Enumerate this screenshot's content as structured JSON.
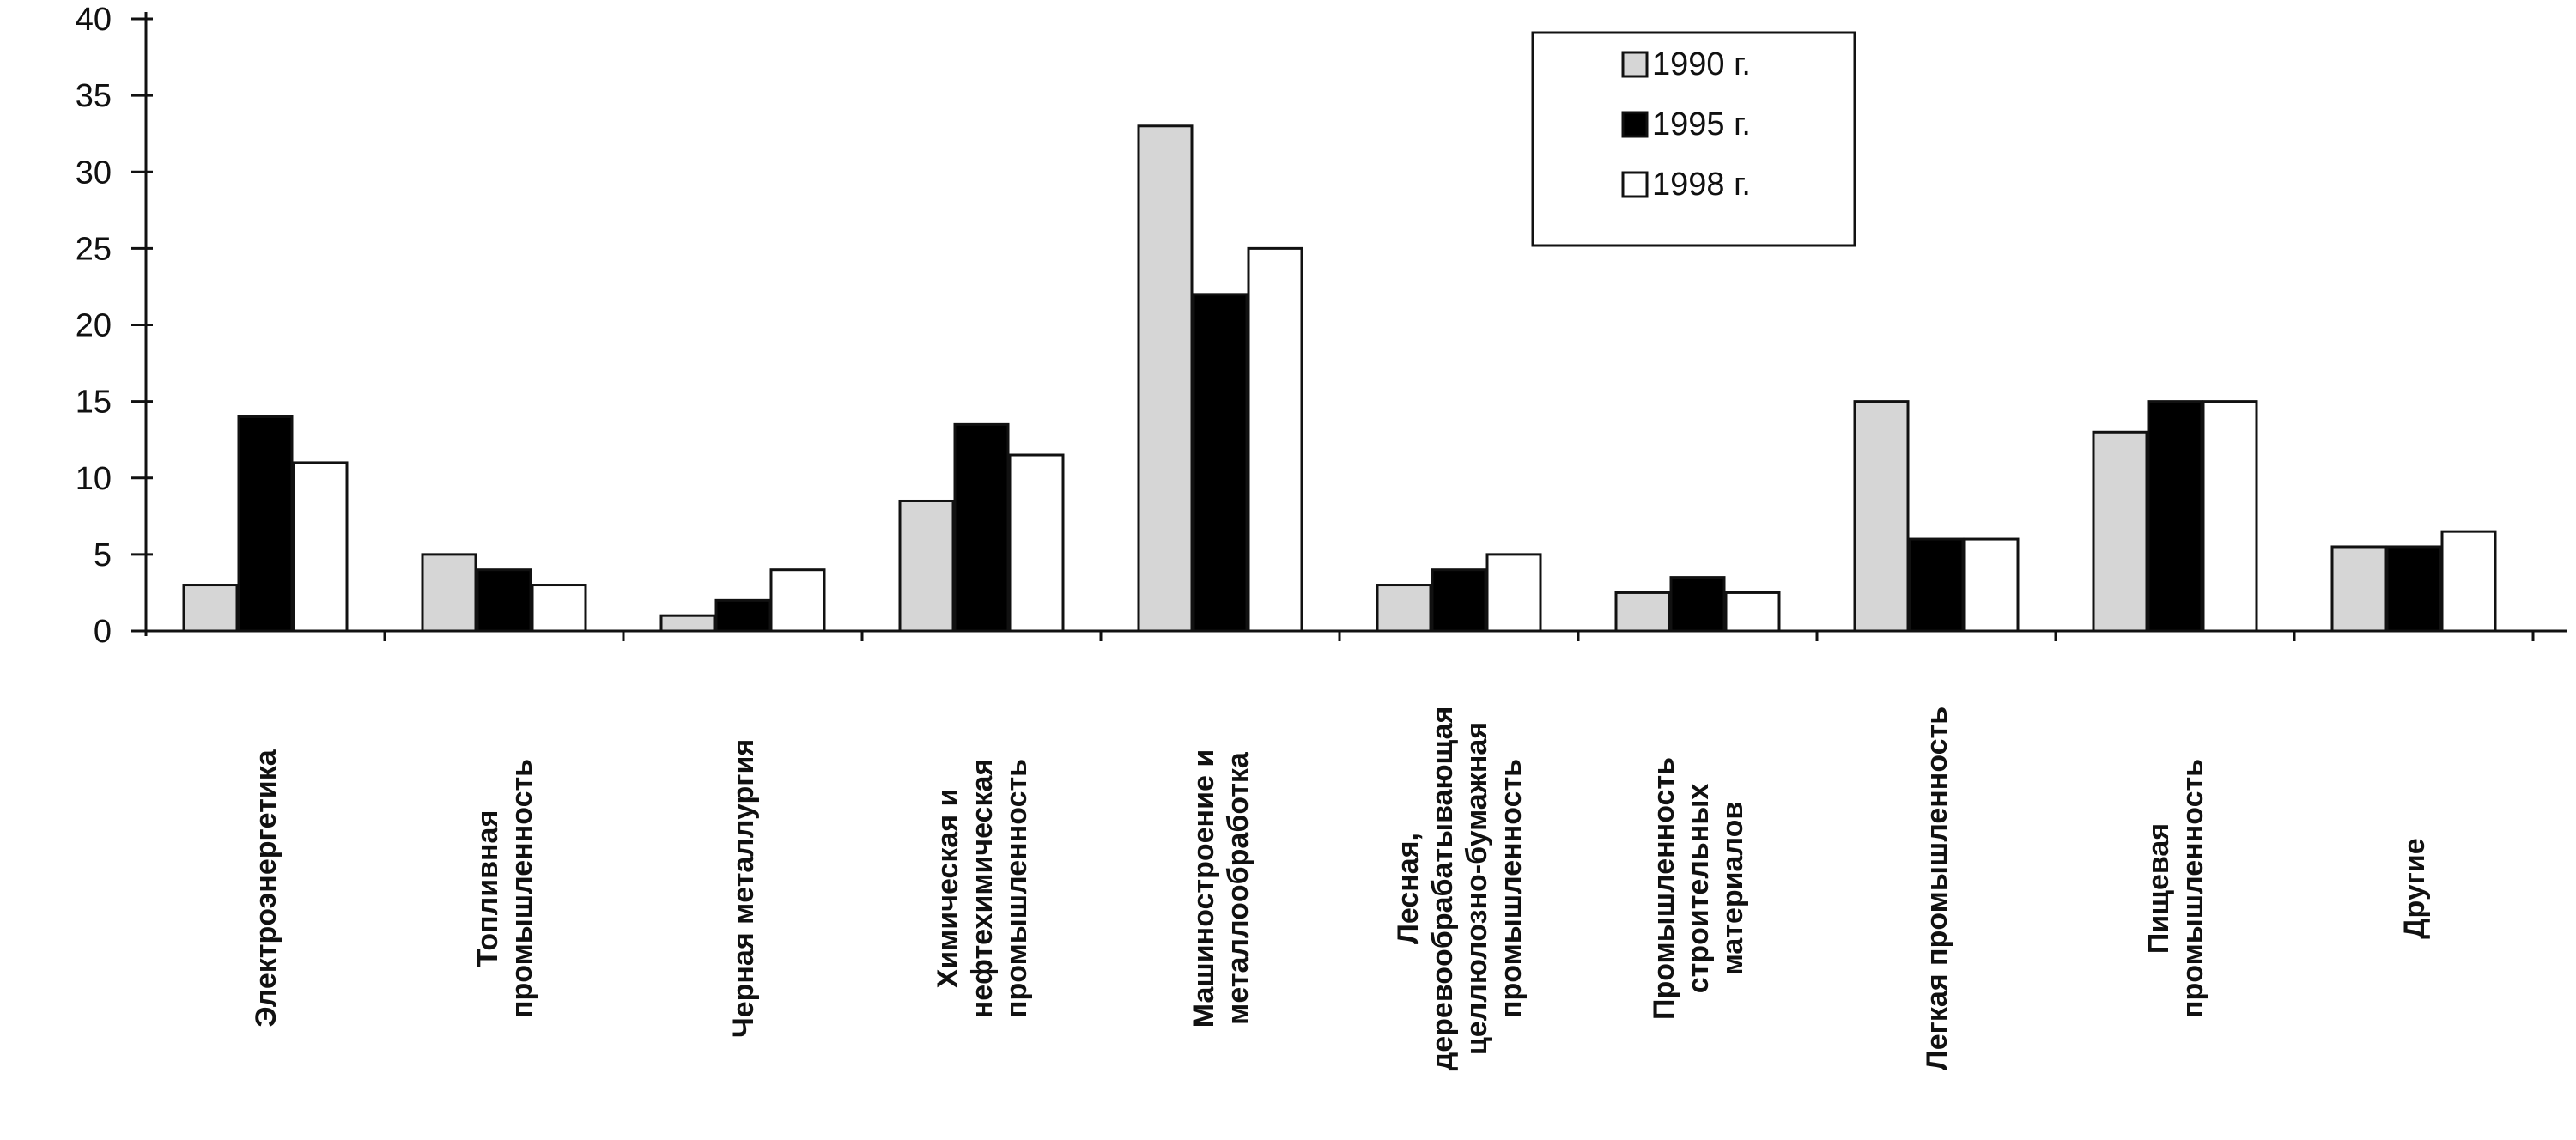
{
  "chart_data": {
    "type": "bar",
    "title": "",
    "xlabel": "",
    "ylabel": "",
    "ylim": [
      0,
      40
    ],
    "yticks": [
      0,
      5,
      10,
      15,
      20,
      25,
      30,
      35,
      40
    ],
    "grid": false,
    "legend_position": "top-right",
    "categories": [
      [
        "Электроэнергетика"
      ],
      [
        "Топливная",
        "промышленность"
      ],
      [
        "Черная металлургия"
      ],
      [
        "Химическая и",
        "нефтехимическая",
        "промышленность"
      ],
      [
        "Машиностроение и",
        "металлообработка"
      ],
      [
        "Лесная,",
        "деревообрабатывающая",
        "целлюлозно-бумажная",
        "промышленность"
      ],
      [
        "Промышленность",
        "строительных",
        "материалов"
      ],
      [
        "Легкая промышленность"
      ],
      [
        "Пищевая",
        "промышленность"
      ],
      [
        "Другие"
      ]
    ],
    "series": [
      {
        "name": "1990 г.",
        "fill": "#d6d6d6",
        "values": [
          3,
          5,
          1,
          8.5,
          33,
          3,
          2.5,
          15,
          13,
          5.5
        ]
      },
      {
        "name": "1995 г.",
        "fill": "#000000",
        "values": [
          14,
          4,
          2,
          13.5,
          22,
          4,
          3.5,
          6,
          15,
          5.5
        ]
      },
      {
        "name": "1998 г.",
        "fill": "#ffffff",
        "values": [
          11,
          3,
          4,
          11.5,
          25,
          5,
          2.5,
          6,
          15,
          6.5
        ]
      }
    ]
  }
}
